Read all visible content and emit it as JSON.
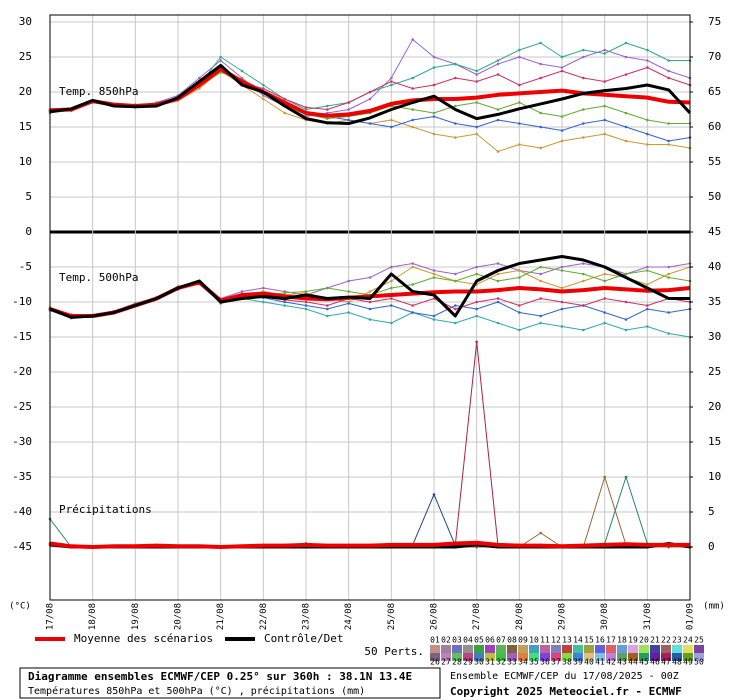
{
  "chart_data": {
    "type": "line",
    "panel_labels": [
      "Temp. 850hPa",
      "Temp. 500hPa",
      "Précipitations"
    ],
    "ylabel": "(°C)",
    "y2label": "(mm)",
    "x": [
      0,
      12,
      24,
      36,
      48,
      60,
      72,
      84,
      96,
      108,
      120,
      132,
      144,
      156,
      168,
      180,
      192,
      204,
      216,
      228,
      240,
      252,
      264,
      276,
      288,
      300,
      312,
      324,
      336,
      348,
      360
    ],
    "xlim": [
      0,
      360
    ],
    "xticks": [
      {
        "value": 0,
        "label": "17/08"
      },
      {
        "value": 24,
        "label": "18/08"
      },
      {
        "value": 48,
        "label": "19/08"
      },
      {
        "value": 72,
        "label": "20/08"
      },
      {
        "value": 96,
        "label": "21/08"
      },
      {
        "value": 120,
        "label": "22/08"
      },
      {
        "value": 144,
        "label": "23/08"
      },
      {
        "value": 168,
        "label": "24/08"
      },
      {
        "value": 192,
        "label": "25/08"
      },
      {
        "value": 216,
        "label": "26/08"
      },
      {
        "value": 240,
        "label": "27/08"
      },
      {
        "value": 264,
        "label": "28/08"
      },
      {
        "value": 288,
        "label": "29/08"
      },
      {
        "value": 312,
        "label": "30/08"
      },
      {
        "value": 336,
        "label": "31/08"
      },
      {
        "value": 360,
        "label": "01/09"
      }
    ],
    "ylim": [
      -52.5,
      30
    ],
    "yticks": [
      -45,
      -40,
      -35,
      -30,
      -25,
      -20,
      -15,
      -10,
      -5,
      0,
      5,
      10,
      15,
      20,
      25,
      30
    ],
    "y2lim": [
      -7.5,
      75
    ],
    "y2ticks": [
      0,
      5,
      10,
      15,
      20,
      25,
      30,
      35,
      40,
      45,
      50,
      55,
      60,
      65,
      70,
      75
    ],
    "grid": true,
    "series": [
      {
        "color": "#9966cc",
        "width": 1,
        "values": [
          17,
          17.4,
          18.5,
          18,
          17.8,
          18.5,
          19.5,
          22,
          24.5,
          22,
          19.5,
          18,
          16.5,
          17,
          17.5,
          19,
          22,
          27.5,
          25,
          24,
          22.5,
          24,
          25,
          24,
          23.5,
          25,
          26,
          25,
          24.5,
          23,
          22
        ]
      },
      {
        "color": "#cc9933",
        "width": 1,
        "values": [
          17.5,
          17.3,
          18.6,
          18.3,
          18.1,
          18,
          18.8,
          20.5,
          23,
          21,
          19,
          17,
          16,
          15.5,
          16,
          15.5,
          16,
          15,
          14,
          13.5,
          14,
          11.5,
          12.5,
          12,
          13,
          13.5,
          14,
          13,
          12.5,
          12.5,
          12
        ]
      },
      {
        "color": "#33aa88",
        "width": 1,
        "values": [
          17.2,
          17.5,
          18.7,
          18.1,
          18,
          18.4,
          19,
          21,
          25,
          23,
          21,
          19,
          17.5,
          18,
          18.5,
          20,
          21,
          22,
          23.5,
          24,
          23,
          24.5,
          26,
          27,
          25,
          26,
          25.5,
          27,
          26,
          24.5,
          24.5
        ]
      },
      {
        "color": "#3366cc",
        "width": 1,
        "values": [
          17.4,
          17.6,
          18.8,
          18.2,
          17.9,
          18.1,
          19.1,
          21.2,
          23,
          21.5,
          20,
          18.5,
          17,
          16.5,
          16,
          15.5,
          15,
          16,
          16.5,
          15.5,
          15,
          16,
          15.5,
          15,
          14.5,
          15.5,
          16,
          15,
          14,
          13,
          13.5
        ]
      },
      {
        "color": "#cc3366",
        "width": 1,
        "values": [
          17.3,
          17.5,
          18.6,
          18.2,
          18,
          18.3,
          19.2,
          21.5,
          23.5,
          21.2,
          20.5,
          19,
          17.8,
          17.5,
          18.5,
          20,
          21.5,
          20.5,
          21,
          22,
          21.5,
          22.5,
          21,
          22,
          23,
          22,
          21.5,
          22.5,
          23.5,
          22,
          21
        ]
      },
      {
        "color": "#66aa33",
        "width": 1,
        "values": [
          17.5,
          17.4,
          18.7,
          18.3,
          18.2,
          18.1,
          18.9,
          20.8,
          22.8,
          21.8,
          19.8,
          18,
          16.8,
          16.2,
          16.5,
          17,
          18,
          17.5,
          17,
          18,
          18.5,
          17.5,
          18.5,
          17,
          16.5,
          17.5,
          18,
          17,
          16,
          15.5,
          15.5
        ]
      },
      {
        "color": "#9966cc",
        "width": 1,
        "values": [
          -11,
          -12,
          -12,
          -11.5,
          -10.5,
          -9.5,
          -8,
          -7.3,
          -9.5,
          -8.5,
          -8,
          -8.5,
          -9,
          -8,
          -7,
          -6.5,
          -5,
          -4.5,
          -5.5,
          -6,
          -5,
          -4.5,
          -5.5,
          -6,
          -5,
          -4.5,
          -5,
          -6,
          -5,
          -5,
          -4.5
        ]
      },
      {
        "color": "#33aaaa",
        "width": 1,
        "values": [
          -11.2,
          -12.3,
          -11.9,
          -11.3,
          -10.2,
          -9.3,
          -7.8,
          -7.1,
          -10.2,
          -9.5,
          -10,
          -10.5,
          -11,
          -12,
          -11.5,
          -12.5,
          -13,
          -11.5,
          -12.5,
          -13,
          -12,
          -13,
          -14,
          -13,
          -13.5,
          -14,
          -13,
          -14,
          -13.5,
          -14.5,
          -15
        ]
      },
      {
        "color": "#cc9933",
        "width": 1,
        "values": [
          -10.8,
          -11.8,
          -12.1,
          -11.6,
          -10.6,
          -9.6,
          -8.1,
          -7.2,
          -9.7,
          -9.2,
          -8.5,
          -9,
          -8.7,
          -9.5,
          -10,
          -8.5,
          -7,
          -5,
          -6,
          -7,
          -7.5,
          -6,
          -5.5,
          -7,
          -8,
          -7,
          -6,
          -6.5,
          -7.5,
          -6,
          -5
        ]
      },
      {
        "color": "#3366cc",
        "width": 1,
        "values": [
          -11.1,
          -12.1,
          -12,
          -11.4,
          -10.4,
          -9.4,
          -7.9,
          -7.1,
          -9.9,
          -9.3,
          -9.4,
          -10,
          -10.5,
          -11,
          -10.2,
          -11,
          -10.5,
          -11.5,
          -12,
          -10.5,
          -11,
          -10,
          -11.5,
          -12,
          -11,
          -10.5,
          -11.5,
          -12.5,
          -11,
          -11.5,
          -11
        ]
      },
      {
        "color": "#66aa33",
        "width": 1,
        "values": [
          -10.9,
          -12,
          -12,
          -11.5,
          -10.5,
          -9.5,
          -8,
          -7.2,
          -9.6,
          -8.8,
          -9,
          -8.7,
          -8.5,
          -8,
          -8.5,
          -9,
          -8,
          -7.5,
          -6.5,
          -7,
          -6,
          -7,
          -6.5,
          -5,
          -5.5,
          -6,
          -7,
          -6,
          -5.5,
          -6.5,
          -7
        ]
      },
      {
        "color": "#cc3366",
        "width": 1,
        "values": [
          -11,
          -12.2,
          -11.9,
          -11.4,
          -10.3,
          -9.6,
          -8.2,
          -7.1,
          -10.1,
          -9.1,
          -9.3,
          -9.7,
          -10,
          -10.5,
          -9.5,
          -10,
          -9.5,
          -10.5,
          -9.5,
          -11,
          -10,
          -9.5,
          -10.5,
          -9.5,
          -10,
          -10.5,
          -9.5,
          -10,
          -10.5,
          -9.5,
          -10
        ]
      },
      {
        "color": "#aa2244",
        "width": 1,
        "axis": "y2",
        "values": [
          0.3,
          0,
          0,
          0,
          0,
          0,
          0,
          0,
          0,
          0,
          0,
          0,
          0,
          0,
          0,
          0,
          0,
          0,
          0,
          0.3,
          29.3,
          0.2,
          0,
          0,
          0,
          0,
          0,
          0,
          0,
          0,
          0
        ]
      },
      {
        "color": "#224488",
        "width": 1,
        "axis": "y2",
        "values": [
          0.5,
          0,
          0,
          0,
          0,
          0,
          0,
          0,
          0,
          0,
          0,
          0,
          0.5,
          0,
          0,
          0,
          0,
          0.3,
          7.5,
          0.2,
          0,
          0,
          0,
          0,
          0,
          0,
          0,
          0,
          0,
          0,
          0
        ]
      },
      {
        "color": "#228866",
        "width": 1,
        "axis": "y2",
        "values": [
          4,
          0,
          0,
          0,
          0,
          0,
          0,
          0,
          0,
          0,
          0,
          0,
          0,
          0,
          0,
          0,
          0,
          0,
          0,
          0,
          0,
          0,
          0,
          0,
          0,
          0,
          0.5,
          10,
          0.5,
          0,
          0
        ]
      },
      {
        "color": "#996633",
        "width": 1,
        "axis": "y2",
        "values": [
          0.5,
          0,
          0,
          0,
          0,
          0,
          0,
          0,
          0,
          0,
          0,
          0,
          0,
          0,
          0,
          0,
          0,
          0,
          0,
          0,
          0,
          0,
          0,
          2,
          0,
          0,
          10,
          0.3,
          0,
          0,
          0
        ]
      },
      {
        "color": "#ee0000",
        "width": 4,
        "values": [
          17.4,
          17.5,
          18.7,
          18.2,
          18,
          18.2,
          19,
          21,
          23.3,
          21.5,
          20,
          18.5,
          17,
          16.6,
          16.8,
          17.3,
          18.3,
          18.8,
          19,
          19,
          19.2,
          19.6,
          19.8,
          20,
          20.2,
          19.8,
          19.6,
          19.4,
          19.2,
          18.6,
          18.5
        ]
      },
      {
        "color": "#000000",
        "width": 3,
        "values": [
          17.2,
          17.6,
          18.8,
          18,
          17.9,
          18,
          19.2,
          21.5,
          23.8,
          21,
          20,
          18,
          16.2,
          15.6,
          15.5,
          16.3,
          17.5,
          18.5,
          19.4,
          17.5,
          16.2,
          16.8,
          17.6,
          18.3,
          19,
          19.8,
          20.2,
          20.5,
          21,
          20.3,
          17
        ]
      },
      {
        "color": "#ee0000",
        "width": 4,
        "values": [
          -11,
          -12,
          -12,
          -11.5,
          -10.5,
          -9.5,
          -8,
          -7.2,
          -9.8,
          -9,
          -8.8,
          -9.2,
          -9.5,
          -9.6,
          -9.4,
          -9.2,
          -9,
          -8.8,
          -8.6,
          -8.5,
          -8.5,
          -8.3,
          -8,
          -8.2,
          -8.5,
          -8.3,
          -8,
          -8.2,
          -8.4,
          -8.3,
          -8
        ]
      },
      {
        "color": "#000000",
        "width": 3,
        "values": [
          -11,
          -12.2,
          -12,
          -11.5,
          -10.5,
          -9.5,
          -8,
          -7,
          -10,
          -9.5,
          -9.2,
          -9.5,
          -9,
          -9.5,
          -9.3,
          -9.5,
          -6,
          -8.5,
          -9,
          -12,
          -7,
          -5.5,
          -4.5,
          -4,
          -3.5,
          -4,
          -5,
          -6.5,
          -8,
          -9.5,
          -9.5
        ]
      },
      {
        "color": "#000000",
        "width": 3,
        "axis": "y2",
        "values": [
          0.3,
          0,
          0,
          0,
          0,
          0,
          0,
          0,
          0,
          0,
          0,
          0,
          0,
          0,
          0,
          0,
          0,
          0,
          0,
          0,
          0.3,
          0,
          0,
          0,
          0,
          0,
          0,
          0,
          0,
          0.5,
          0
        ]
      },
      {
        "color": "#ee0000",
        "width": 4,
        "axis": "y2",
        "values": [
          0.5,
          0.1,
          0,
          0.1,
          0.1,
          0.2,
          0.1,
          0.1,
          0,
          0.1,
          0.2,
          0.2,
          0.3,
          0.2,
          0.2,
          0.2,
          0.3,
          0.3,
          0.3,
          0.5,
          0.6,
          0.3,
          0.2,
          0.2,
          0.1,
          0.2,
          0.3,
          0.4,
          0.3,
          0.3,
          0.3
        ]
      }
    ],
    "legend": {
      "mean": {
        "label": "Moyenne des scénarios",
        "color": "#ee0000"
      },
      "control": {
        "label": "Contrôle/Det",
        "color": "#000000"
      },
      "perts": "50 Perts.",
      "pert_keys": [
        {
          "label": "01",
          "color": "#c09080"
        },
        {
          "label": "02",
          "color": "#a080a0"
        },
        {
          "label": "03",
          "color": "#7070c0"
        },
        {
          "label": "04",
          "color": "#909090"
        },
        {
          "label": "05",
          "color": "#40a040"
        },
        {
          "label": "06",
          "color": "#a040c0"
        },
        {
          "label": "07",
          "color": "#60b060"
        },
        {
          "label": "08",
          "color": "#806040"
        },
        {
          "label": "09",
          "color": "#c0a060"
        },
        {
          "label": "10",
          "color": "#40a0c0"
        },
        {
          "label": "11",
          "color": "#c060a0"
        },
        {
          "label": "12",
          "color": "#8080c0"
        },
        {
          "label": "13",
          "color": "#c04040"
        },
        {
          "label": "14",
          "color": "#40c0a0"
        },
        {
          "label": "15",
          "color": "#a0a040"
        },
        {
          "label": "16",
          "color": "#6060e0"
        },
        {
          "label": "17",
          "color": "#e06060"
        },
        {
          "label": "18",
          "color": "#60a0e0"
        },
        {
          "label": "19",
          "color": "#e0a0e0"
        },
        {
          "label": "20",
          "color": "#a0e060"
        },
        {
          "label": "21",
          "color": "#4040a0"
        },
        {
          "label": "22",
          "color": "#a06060"
        },
        {
          "label": "23",
          "color": "#60e0e0"
        },
        {
          "label": "24",
          "color": "#e0e060"
        },
        {
          "label": "25",
          "color": "#8040a0"
        },
        {
          "label": "26",
          "color": "#806080"
        },
        {
          "label": "27",
          "color": "#c080c0"
        },
        {
          "label": "28",
          "color": "#60c060"
        },
        {
          "label": "29",
          "color": "#c04080"
        },
        {
          "label": "30",
          "color": "#4080c0"
        },
        {
          "label": "31",
          "color": "#c0c040"
        },
        {
          "label": "32",
          "color": "#40c040"
        },
        {
          "label": "33",
          "color": "#a060c0"
        },
        {
          "label": "34",
          "color": "#e08040"
        },
        {
          "label": "35",
          "color": "#40e080"
        },
        {
          "label": "36",
          "color": "#8040e0"
        },
        {
          "label": "37",
          "color": "#e04080"
        },
        {
          "label": "38",
          "color": "#80e040"
        },
        {
          "label": "39",
          "color": "#4080e0"
        },
        {
          "label": "40",
          "color": "#e0c080"
        },
        {
          "label": "41",
          "color": "#80c0e0"
        },
        {
          "label": "42",
          "color": "#c080e0"
        },
        {
          "label": "43",
          "color": "#60a060"
        },
        {
          "label": "44",
          "color": "#a06020"
        },
        {
          "label": "45",
          "color": "#20a060"
        },
        {
          "label": "46",
          "color": "#6020a0"
        },
        {
          "label": "47",
          "color": "#a02060"
        },
        {
          "label": "48",
          "color": "#2060a0"
        },
        {
          "label": "49",
          "color": "#60a020"
        },
        {
          "label": "50",
          "color": "#a0a0e0"
        }
      ]
    },
    "footer": {
      "title": "Diagramme ensembles ECMWF/CEP 0.25° sur 360h : 38.1N 13.4E",
      "subtitle": "Températures 850hPa et 500hPa (°C) , précipitations (mm)",
      "run": "Ensemble ECMWF/CEP du 17/08/2025 - 00Z",
      "copyright": "Copyright 2025 Meteociel.fr - ECMWF"
    }
  }
}
